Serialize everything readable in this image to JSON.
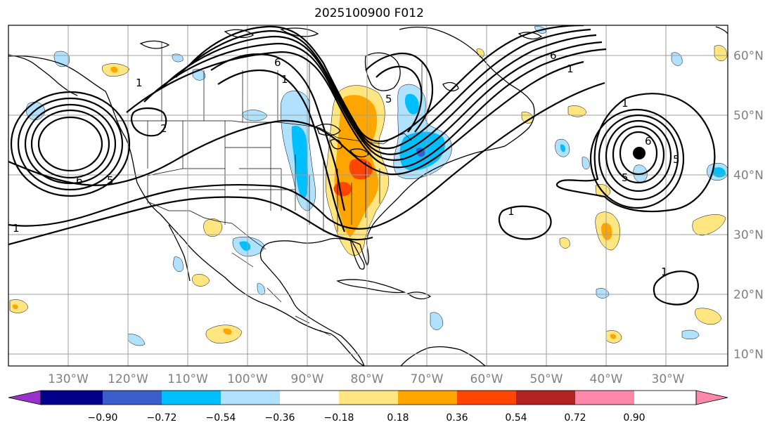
{
  "map": {
    "title": "2025100900 F012",
    "longitude_labels": [
      "130°W",
      "120°W",
      "110°W",
      "100°W",
      "90°W",
      "80°W",
      "70°W",
      "60°W",
      "50°W",
      "40°W",
      "30°W"
    ],
    "latitude_labels": [
      "60°N",
      "50°N",
      "40°N",
      "30°N",
      "20°N",
      "10°N"
    ],
    "contour_labels": [
      "1",
      "2",
      "6",
      "5",
      "6",
      "1",
      "5",
      "6",
      "1",
      "6",
      "5",
      "1",
      "5",
      "1",
      "1",
      "1"
    ],
    "marker": "black-dot"
  },
  "colorbar": {
    "tick_labels": [
      "−0.90",
      "−0.72",
      "−0.54",
      "−0.36",
      "−0.18",
      "0.18",
      "0.36",
      "0.54",
      "0.72",
      "0.90"
    ],
    "colors": [
      "#9932cc",
      "#00008b",
      "#3a5fcd",
      "#00bfff",
      "#b0e2ff",
      "#ffffff",
      "#ffe680",
      "#ffa500",
      "#ff4500",
      "#b22222",
      "#ff88aa"
    ]
  },
  "fill_colors": {
    "neg_light": "#b0e2ff",
    "neg_mid": "#00bfff",
    "neg_dark": "#3a5fcd",
    "pos_light": "#ffe680",
    "pos_mid": "#ffa500",
    "pos_dark": "#ff4500"
  }
}
